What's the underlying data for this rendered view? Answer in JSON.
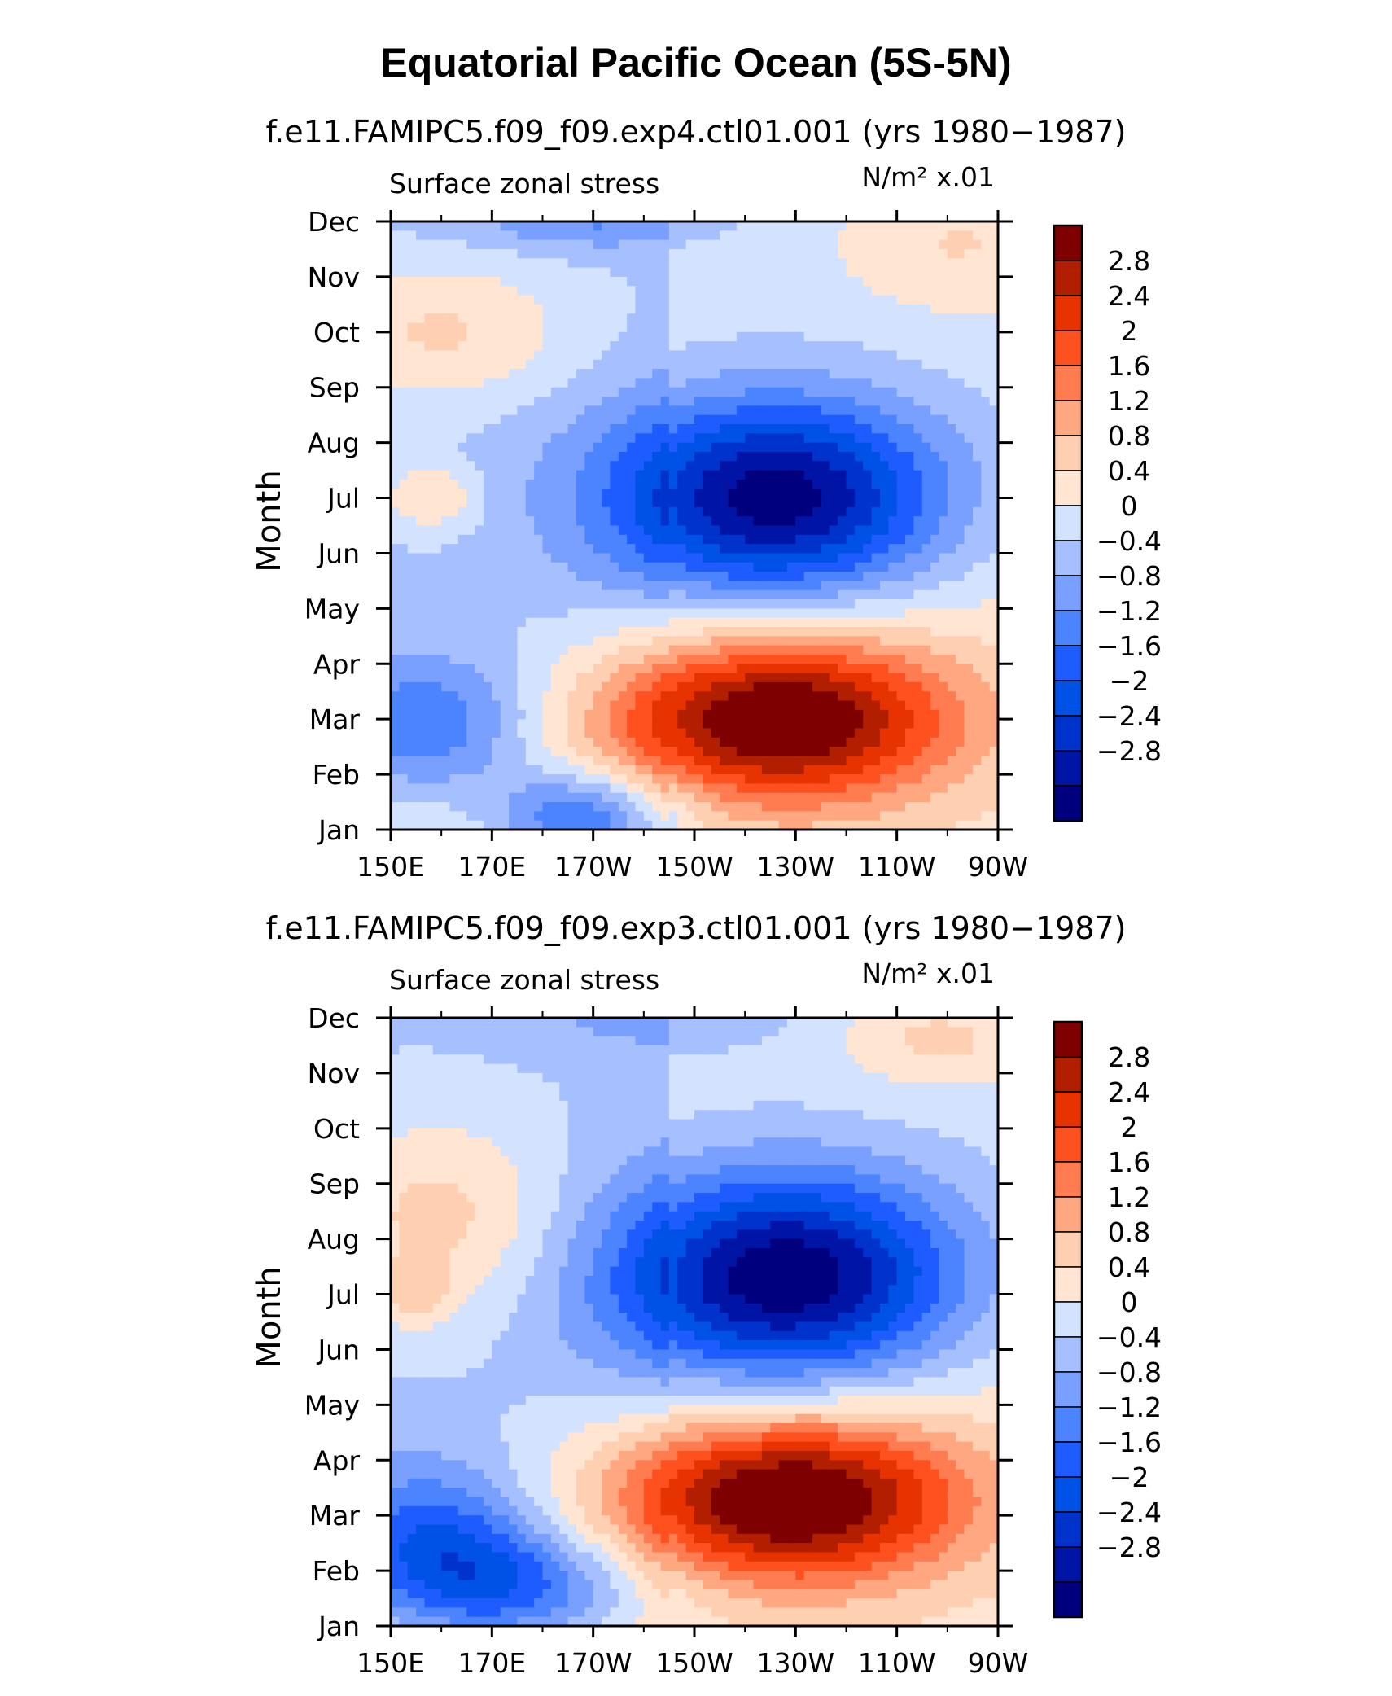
{
  "page": {
    "title": "Equatorial Pacific Ocean (5S-5N)"
  },
  "colors": [
    "#00007f",
    "#0015a6",
    "#0033cc",
    "#0052e6",
    "#1f5cff",
    "#4c84ff",
    "#799fff",
    "#a6bfff",
    "#d2e2ff",
    "#ffe5d2",
    "#ffcfb2",
    "#ffa781",
    "#ff7c50",
    "#ff501f",
    "#e63300",
    "#b21f00",
    "#7f0000"
  ],
  "chart_data": [
    {
      "type": "heatmap",
      "subtitle": "f.e11.FAMIPC5.f09_f09.exp4.ctl01.001 (yrs 1980−1987)",
      "left_label": "Surface zonal stress",
      "right_label": "N/m² x.01",
      "ylabel": "Month",
      "x_tick_labels": [
        "150E",
        "170E",
        "170W",
        "150W",
        "130W",
        "110W",
        "90W"
      ],
      "x_values_deg_east": [
        150,
        170,
        190,
        210,
        230,
        250,
        270
      ],
      "xlim": [
        150,
        270
      ],
      "y_tick_labels": [
        "Jan",
        "Feb",
        "Mar",
        "Apr",
        "May",
        "Jun",
        "Jul",
        "Aug",
        "Sep",
        "Oct",
        "Nov",
        "Dec"
      ],
      "ylim": [
        1,
        12
      ],
      "contour_levels": [
        "2.8",
        "2.4",
        "2",
        "1.6",
        "1.2",
        "0.8",
        "0.4",
        "0",
        "−0.4",
        "−0.8",
        "−1.2",
        "−1.6",
        "−2",
        "−2.4",
        "−2.8"
      ],
      "features": [
        {
          "kind": "min",
          "lon": 226,
          "month": 7.0,
          "value": -3.3,
          "sx": 33,
          "sy": 1.8
        },
        {
          "kind": "min",
          "lon": 188,
          "month": 1.2,
          "value": -2.0,
          "sx": 18,
          "sy": 0.9
        },
        {
          "kind": "min",
          "lon": 158,
          "month": 2.8,
          "value": -1.4,
          "sx": 22,
          "sy": 1.3
        },
        {
          "kind": "min",
          "lon": 190,
          "month": 12.0,
          "value": -0.8,
          "sx": 25,
          "sy": 0.5
        },
        {
          "kind": "max",
          "lon": 227,
          "month": 3.0,
          "value": 3.3,
          "sx": 34,
          "sy": 1.5
        },
        {
          "kind": "max",
          "lon": 160,
          "month": 10.0,
          "value": 0.9,
          "sx": 26,
          "sy": 1.3
        },
        {
          "kind": "max",
          "lon": 158,
          "month": 7.0,
          "value": 0.9,
          "sx": 9,
          "sy": 0.6
        },
        {
          "kind": "max",
          "lon": 262,
          "month": 11.6,
          "value": 0.6,
          "sx": 22,
          "sy": 1.2
        }
      ]
    },
    {
      "type": "heatmap",
      "subtitle": "f.e11.FAMIPC5.f09_f09.exp3.ctl01.001 (yrs 1980−1987)",
      "left_label": "Surface zonal stress",
      "right_label": "N/m² x.01",
      "ylabel": "Month",
      "x_tick_labels": [
        "150E",
        "170E",
        "170W",
        "150W",
        "130W",
        "110W",
        "90W"
      ],
      "x_values_deg_east": [
        150,
        170,
        190,
        210,
        230,
        250,
        270
      ],
      "xlim": [
        150,
        270
      ],
      "y_tick_labels": [
        "Jan",
        "Feb",
        "Mar",
        "Apr",
        "May",
        "Jun",
        "Jul",
        "Aug",
        "Sep",
        "Oct",
        "Nov",
        "Dec"
      ],
      "ylim": [
        1,
        12
      ],
      "contour_levels": [
        "2.8",
        "2.4",
        "2",
        "1.6",
        "1.2",
        "0.8",
        "0.4",
        "0",
        "−0.4",
        "−0.8",
        "−1.2",
        "−1.6",
        "−2",
        "−2.4",
        "−2.8"
      ],
      "features": [
        {
          "kind": "min",
          "lon": 228,
          "month": 7.3,
          "value": -3.4,
          "sx": 34,
          "sy": 1.9
        },
        {
          "kind": "min",
          "lon": 175,
          "month": 1.7,
          "value": -1.9,
          "sx": 26,
          "sy": 1.1
        },
        {
          "kind": "min",
          "lon": 158,
          "month": 2.6,
          "value": -1.5,
          "sx": 20,
          "sy": 1.4
        },
        {
          "kind": "min",
          "lon": 205,
          "month": 12.0,
          "value": -0.6,
          "sx": 26,
          "sy": 0.6
        },
        {
          "kind": "max",
          "lon": 229,
          "month": 3.3,
          "value": 3.4,
          "sx": 34,
          "sy": 1.5
        },
        {
          "kind": "max",
          "lon": 160,
          "month": 8.4,
          "value": 1.0,
          "sx": 24,
          "sy": 1.8
        },
        {
          "kind": "max",
          "lon": 155,
          "month": 7.0,
          "value": 0.7,
          "sx": 7,
          "sy": 0.6
        },
        {
          "kind": "max",
          "lon": 258,
          "month": 11.6,
          "value": 0.7,
          "sx": 18,
          "sy": 0.8
        }
      ]
    }
  ]
}
